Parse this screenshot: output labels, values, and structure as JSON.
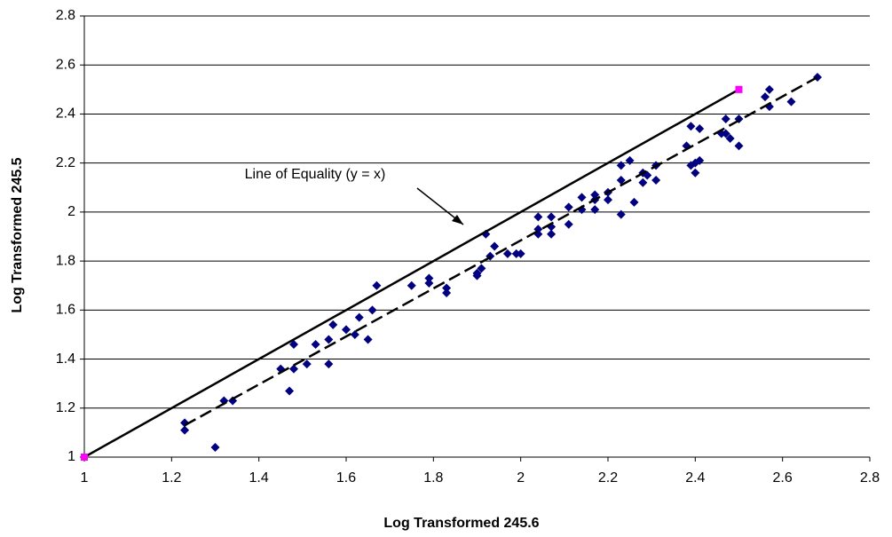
{
  "chart_data": {
    "type": "scatter",
    "x_label": "Log Transformed 245.6",
    "y_label": "Log Transformed 245.5",
    "annotation": "Line of Equality (y = x)",
    "xlim": [
      1,
      2.8
    ],
    "ylim": [
      1,
      2.8
    ],
    "xticks": [
      1,
      1.2,
      1.4,
      1.6,
      1.8,
      2,
      2.2,
      2.4,
      2.6,
      2.8
    ],
    "yticks": [
      1,
      1.2,
      1.4,
      1.6,
      1.8,
      2,
      2.2,
      2.4,
      2.6,
      2.8
    ],
    "grid": true,
    "series": [
      {
        "color": "#000080",
        "marker": "diamond",
        "line": "none",
        "x": [
          1.23,
          1.23,
          1.3,
          1.32,
          1.34,
          1.45,
          1.47,
          1.48,
          1.48,
          1.51,
          1.53,
          1.56,
          1.56,
          1.57,
          1.6,
          1.62,
          1.63,
          1.65,
          1.66,
          1.67,
          1.75,
          1.79,
          1.79,
          1.83,
          1.83,
          1.9,
          1.9,
          1.91,
          1.92,
          1.93,
          1.94,
          1.97,
          1.99,
          2.0,
          2.04,
          2.04,
          2.04,
          2.07,
          2.07,
          2.07,
          2.11,
          2.11,
          2.14,
          2.14,
          2.17,
          2.17,
          2.17,
          2.2,
          2.2,
          2.23,
          2.23,
          2.23,
          2.25,
          2.26,
          2.28,
          2.28,
          2.29,
          2.31,
          2.31,
          2.38,
          2.39,
          2.39,
          2.4,
          2.4,
          2.41,
          2.41,
          2.46,
          2.47,
          2.47,
          2.48,
          2.5,
          2.5,
          2.56,
          2.57,
          2.57,
          2.62,
          2.68
        ],
        "values": [
          1.14,
          1.11,
          1.04,
          1.23,
          1.23,
          1.36,
          1.27,
          1.36,
          1.46,
          1.38,
          1.46,
          1.38,
          1.48,
          1.54,
          1.52,
          1.5,
          1.57,
          1.48,
          1.6,
          1.7,
          1.7,
          1.73,
          1.71,
          1.67,
          1.69,
          1.74,
          1.75,
          1.77,
          1.91,
          1.82,
          1.86,
          1.83,
          1.83,
          1.83,
          1.98,
          1.91,
          1.93,
          1.98,
          1.91,
          1.94,
          1.95,
          2.02,
          2.01,
          2.06,
          2.05,
          2.07,
          2.01,
          2.05,
          2.08,
          2.13,
          2.19,
          1.99,
          2.21,
          2.04,
          2.12,
          2.16,
          2.15,
          2.13,
          2.19,
          2.27,
          2.35,
          2.19,
          2.2,
          2.16,
          2.21,
          2.34,
          2.32,
          2.38,
          2.32,
          2.3,
          2.38,
          2.27,
          2.47,
          2.43,
          2.5,
          2.45,
          2.55
        ]
      },
      {
        "color": "#000000",
        "marker": "none",
        "line": "dashed",
        "x": [
          1.23,
          2.68
        ],
        "values": [
          1.13,
          2.55
        ]
      },
      {
        "color": "#ff00ff",
        "marker": "square",
        "line": "solid",
        "line_color": "#000000",
        "x": [
          1,
          2.5
        ],
        "values": [
          1,
          2.5
        ]
      }
    ]
  }
}
